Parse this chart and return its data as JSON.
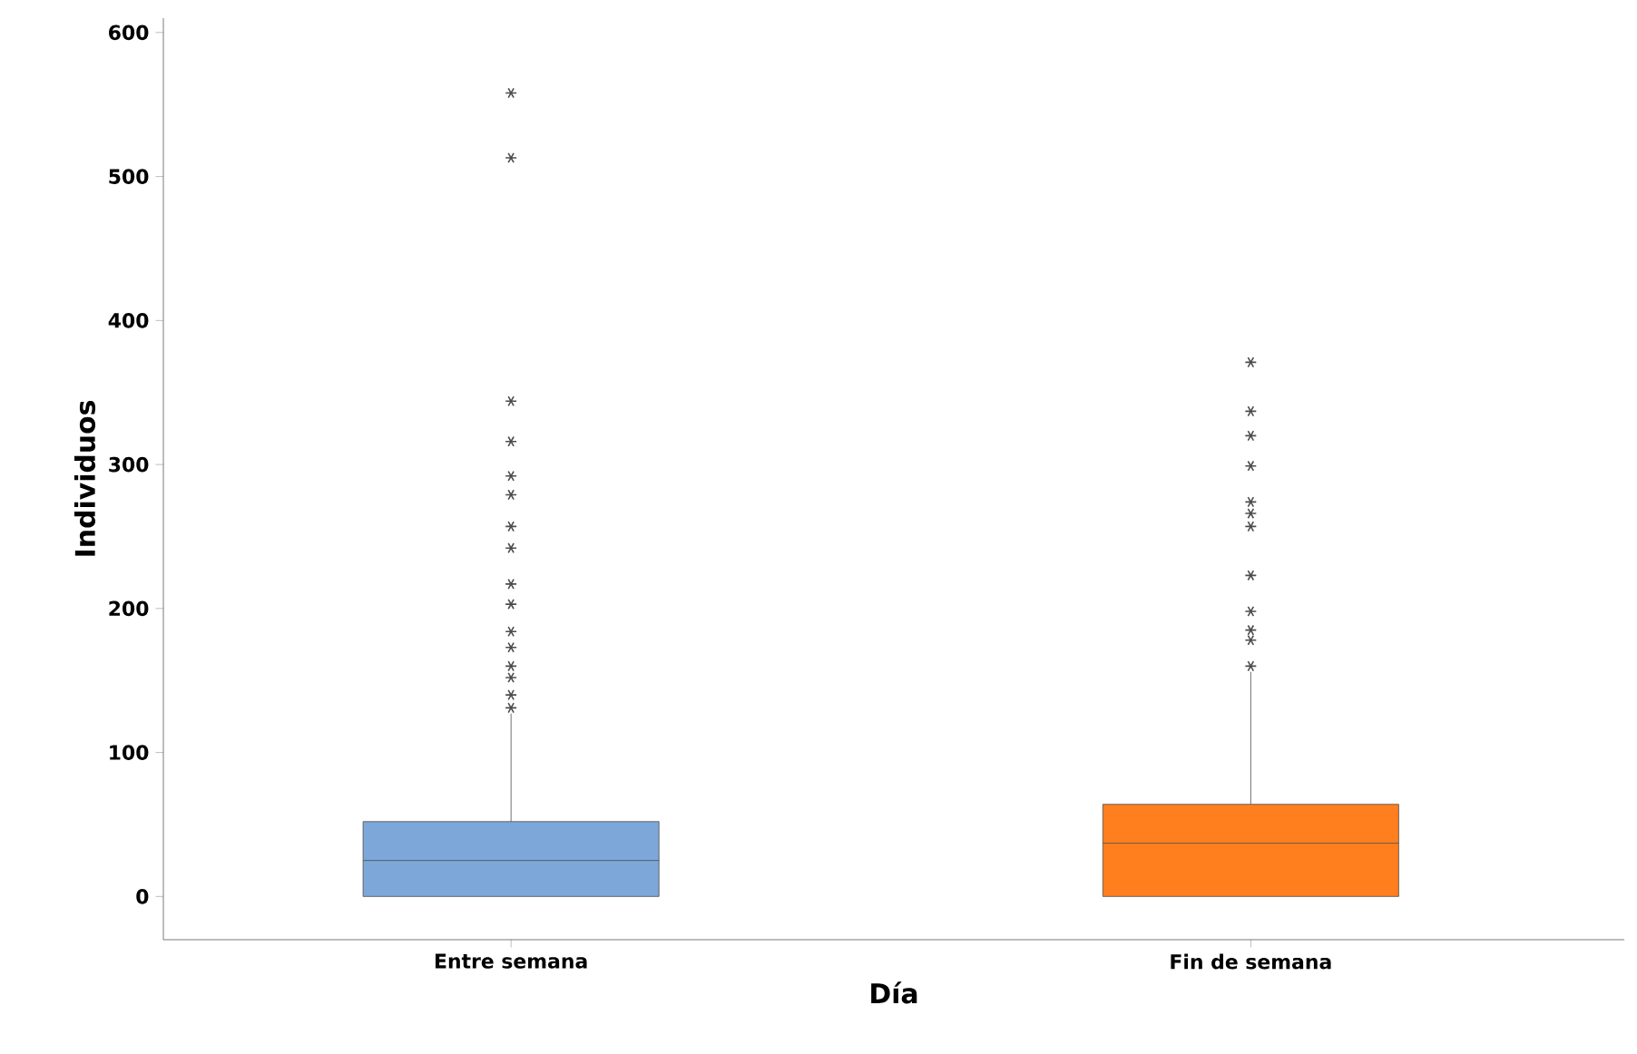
{
  "chart_data": {
    "type": "box",
    "xlabel": "Día",
    "ylabel": "Individuos",
    "categories": [
      "Entre semana",
      "Fin de semana"
    ],
    "ylim": [
      -30,
      610
    ],
    "yticks": [
      0,
      100,
      200,
      300,
      400,
      500,
      600
    ],
    "marker": "star",
    "grid": false,
    "colors": [
      "#7da7d9",
      "#ff7f1e"
    ],
    "boxes": [
      {
        "low": 0,
        "q1": 0,
        "median": 25,
        "q3": 52,
        "high": 127,
        "outliers": [
          558,
          513,
          344,
          316,
          292,
          279,
          257,
          242,
          217,
          203,
          184,
          173,
          160,
          152,
          140,
          131
        ]
      },
      {
        "low": 0,
        "q1": 0,
        "median": 37,
        "q3": 64,
        "high": 156,
        "outliers": [
          371,
          337,
          320,
          299,
          274,
          266,
          257,
          223,
          198,
          185,
          178,
          160
        ]
      }
    ]
  }
}
